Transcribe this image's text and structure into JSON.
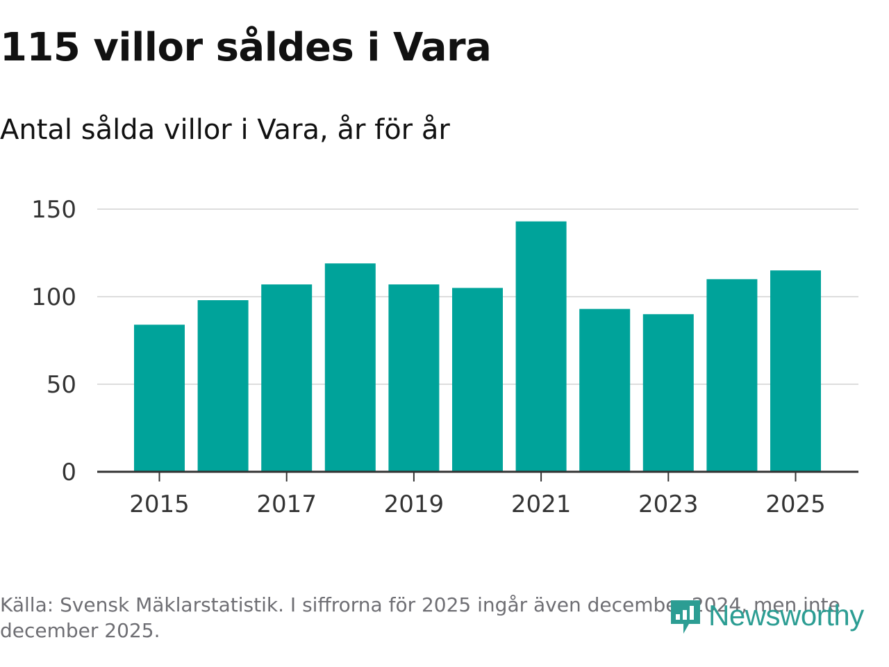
{
  "title": "115 villor såldes i Vara",
  "subtitle": "Antal sålda villor i Vara, år för år",
  "source": "Källa: Svensk Mäklarstatistik. I siffrorna för 2025 ingår även december 2024, men inte december 2025.",
  "logo": {
    "text": "Newsworthy",
    "icon": "newsworthy-logo-icon"
  },
  "colors": {
    "bar": "#00a39a",
    "grid": "#dddddd",
    "axis": "#333333",
    "logo": "#2c9d93"
  },
  "chart_data": {
    "type": "bar",
    "title": "Antal sålda villor i Vara, år för år",
    "xlabel": "",
    "ylabel": "",
    "categories": [
      "2015",
      "2016",
      "2017",
      "2018",
      "2019",
      "2020",
      "2021",
      "2022",
      "2023",
      "2024",
      "2025"
    ],
    "values": [
      84,
      98,
      107,
      119,
      107,
      105,
      143,
      93,
      90,
      110,
      115
    ],
    "ylim": [
      0,
      150
    ],
    "yticks": [
      0,
      50,
      100,
      150
    ],
    "xtick_labels": [
      "2015",
      "2017",
      "2019",
      "2021",
      "2023",
      "2025"
    ],
    "grid": true
  }
}
